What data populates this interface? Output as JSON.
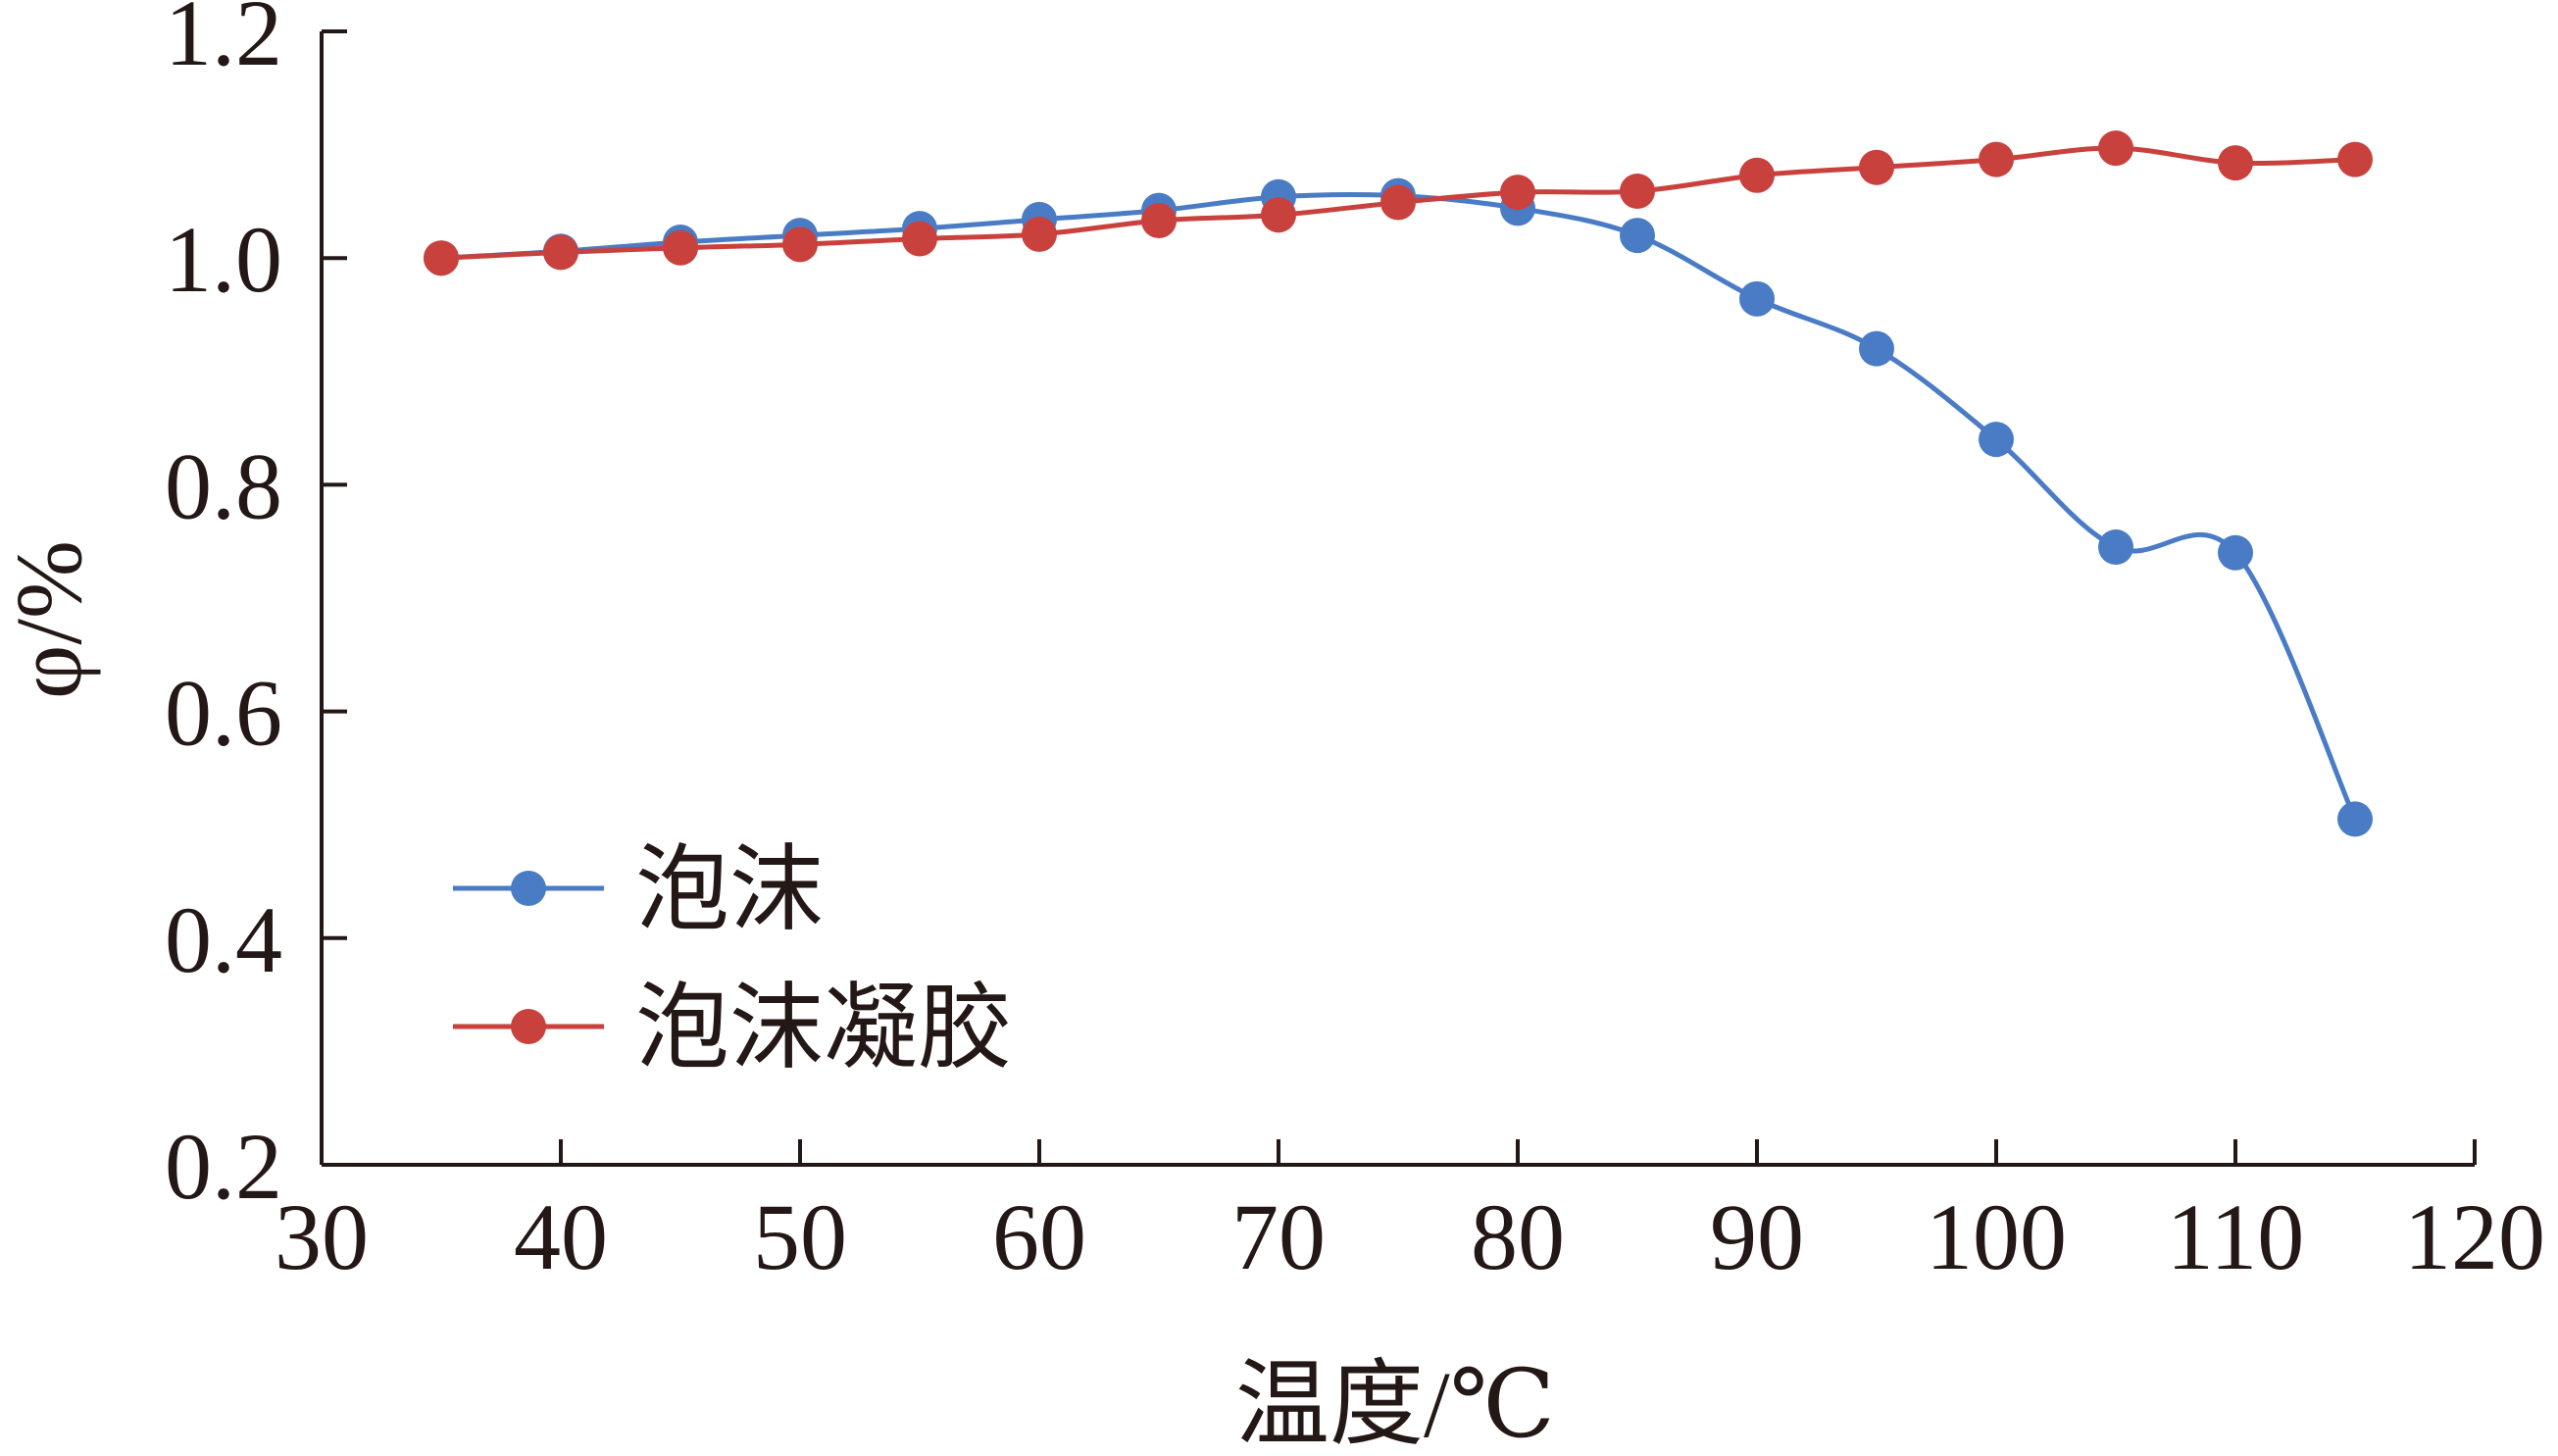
{
  "chart_data": {
    "type": "line",
    "title": "",
    "xlabel": "温度/℃",
    "ylabel": "φ/%",
    "xlim": [
      30,
      120
    ],
    "ylim": [
      0.2,
      1.2
    ],
    "xticks": [
      30,
      40,
      50,
      60,
      70,
      80,
      90,
      100,
      110,
      120
    ],
    "xtick_labels": [
      "30",
      "40",
      "50",
      "60",
      "70",
      "80",
      "90",
      "100",
      "110",
      "120"
    ],
    "yticks": [
      0.2,
      0.4,
      0.6,
      0.8,
      1.0,
      1.2
    ],
    "ytick_labels": [
      "0.2",
      "0.4",
      "0.6",
      "0.8",
      "1.0",
      "1.2"
    ],
    "grid": false,
    "legend_position": "lower-left",
    "x": [
      35,
      40,
      45,
      50,
      55,
      60,
      65,
      70,
      75,
      80,
      85,
      90,
      95,
      100,
      105,
      110,
      115
    ],
    "series": [
      {
        "name": "泡沫",
        "color": "#4a7cc6",
        "values": [
          1.0,
          1.006,
          1.014,
          1.02,
          1.026,
          1.034,
          1.042,
          1.054,
          1.055,
          1.044,
          1.02,
          0.964,
          0.92,
          0.84,
          0.745,
          0.74,
          0.505
        ]
      },
      {
        "name": "泡沫凝胶",
        "color": "#c9413d",
        "values": [
          1.0,
          1.005,
          1.009,
          1.012,
          1.017,
          1.021,
          1.033,
          1.038,
          1.049,
          1.058,
          1.059,
          1.073,
          1.08,
          1.087,
          1.097,
          1.084,
          1.087
        ]
      }
    ]
  }
}
